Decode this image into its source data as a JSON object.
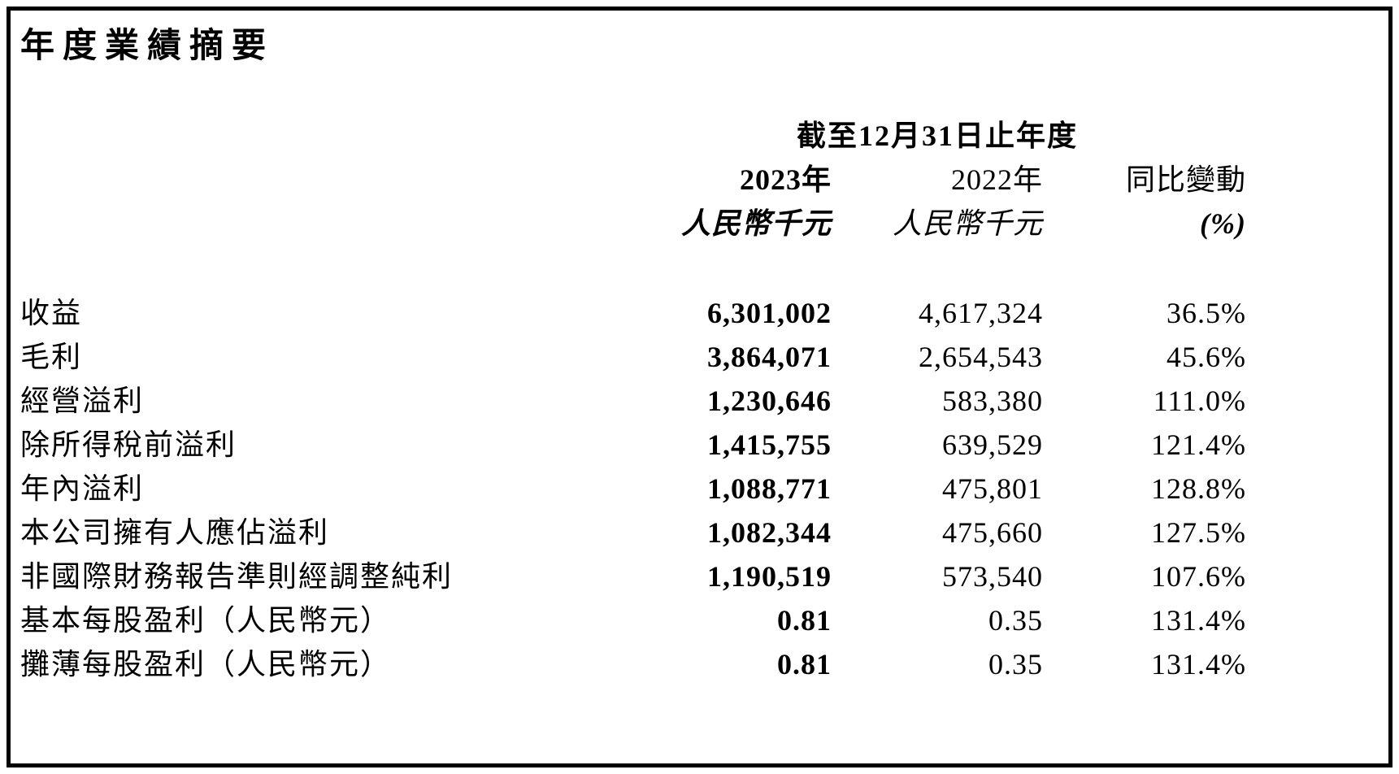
{
  "document": {
    "title": "年度業績摘要"
  },
  "table": {
    "period_header": "截至12月31日止年度",
    "col_2023": {
      "year": "2023年",
      "unit": "人民幣千元"
    },
    "col_2022": {
      "year": "2022年",
      "unit": "人民幣千元"
    },
    "col_yoy": {
      "year": "同比變動",
      "unit": "(%)"
    },
    "rows": [
      {
        "label": "收益",
        "v2023": "6,301,002",
        "v2022": "4,617,324",
        "yoy": "36.5%"
      },
      {
        "label": "毛利",
        "v2023": "3,864,071",
        "v2022": "2,654,543",
        "yoy": "45.6%"
      },
      {
        "label": "經營溢利",
        "v2023": "1,230,646",
        "v2022": "583,380",
        "yoy": "111.0%"
      },
      {
        "label": "除所得稅前溢利",
        "v2023": "1,415,755",
        "v2022": "639,529",
        "yoy": "121.4%"
      },
      {
        "label": "年內溢利",
        "v2023": "1,088,771",
        "v2022": "475,801",
        "yoy": "128.8%"
      },
      {
        "label": "本公司擁有人應佔溢利",
        "v2023": "1,082,344",
        "v2022": "475,660",
        "yoy": "127.5%"
      },
      {
        "label": "非國際財務報告準則經調整純利",
        "v2023": "1,190,519",
        "v2022": "573,540",
        "yoy": "107.6%"
      },
      {
        "label": "基本每股盈利（人民幣元）",
        "v2023": "0.81",
        "v2022": "0.35",
        "yoy": "131.4%"
      },
      {
        "label": "攤薄每股盈利（人民幣元）",
        "v2023": "0.81",
        "v2022": "0.35",
        "yoy": "131.4%"
      }
    ],
    "colors": {
      "text": "#000000",
      "background": "#ffffff",
      "border": "#000000"
    }
  }
}
